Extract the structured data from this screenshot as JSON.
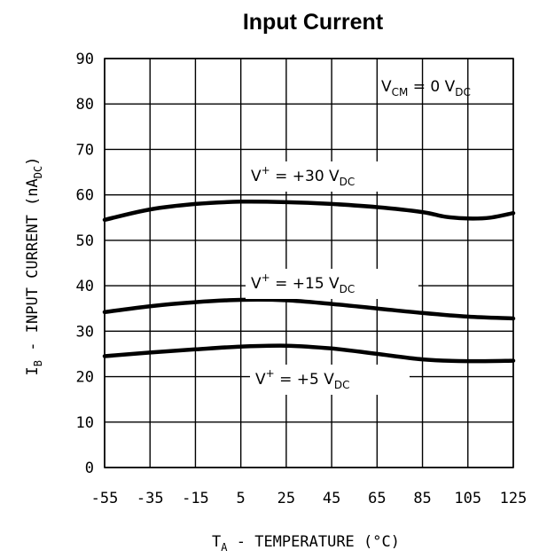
{
  "chart_data": {
    "type": "line",
    "title": "Input Current",
    "xlabel": {
      "main": "T",
      "sub": "A",
      "rest": " - TEMPERATURE (°C)"
    },
    "ylabel": {
      "main": "I",
      "sub": "B",
      "mid": " - INPUT CURRENT (nA",
      "sub2": "DC",
      "end": ")"
    },
    "xlim": [
      -55,
      125
    ],
    "ylim": [
      0,
      90
    ],
    "x_ticks": [
      -55,
      -35,
      -15,
      5,
      25,
      45,
      65,
      85,
      105,
      125
    ],
    "y_ticks": [
      0,
      10,
      20,
      30,
      40,
      50,
      60,
      70,
      80,
      90
    ],
    "grid": true,
    "annotation": {
      "v": "V",
      "sub": "CM",
      "eq": " = 0 V",
      "sub2": "DC"
    },
    "series": [
      {
        "name": "V+ = +30 VDC",
        "label": {
          "v": "V",
          "sup": "+",
          "eq": " = +30 V",
          "sub": "DC"
        },
        "x": [
          -55,
          -35,
          -15,
          5,
          25,
          45,
          65,
          85,
          95,
          105,
          115,
          125
        ],
        "y": [
          54.5,
          56.8,
          58.0,
          58.5,
          58.4,
          58.0,
          57.3,
          56.2,
          55.2,
          54.8,
          55.0,
          56.0
        ]
      },
      {
        "name": "V+ = +15 VDC",
        "label": {
          "v": "V",
          "sup": "+",
          "eq": " = +15 V",
          "sub": "DC"
        },
        "x": [
          -55,
          -35,
          -15,
          5,
          25,
          45,
          65,
          85,
          105,
          125
        ],
        "y": [
          34.2,
          35.5,
          36.4,
          36.9,
          36.8,
          36.0,
          35.0,
          34.0,
          33.2,
          32.8
        ]
      },
      {
        "name": "V+ = +5 VDC",
        "label": {
          "v": "V",
          "sup": "+",
          "eq": " = +5 V",
          "sub": "DC"
        },
        "x": [
          -55,
          -35,
          -15,
          5,
          25,
          45,
          65,
          85,
          105,
          125
        ],
        "y": [
          24.5,
          25.3,
          26.0,
          26.6,
          26.8,
          26.2,
          25.0,
          23.8,
          23.4,
          23.5
        ]
      }
    ]
  }
}
